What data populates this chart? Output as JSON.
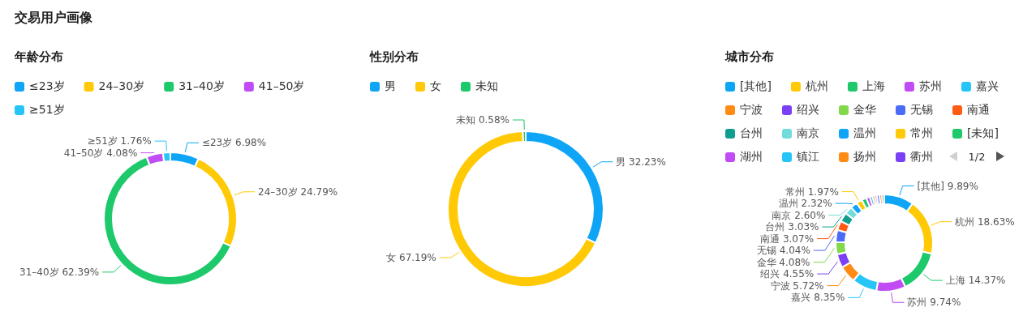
{
  "chart_data": [
    {
      "type": "other",
      "title": "交易用户画像"
    },
    {
      "type": "donut",
      "title": "年龄分布",
      "legend": "top left",
      "categories": [
        "≤23岁",
        "24–30岁",
        "31–40岁",
        "41–50岁",
        "≥51岁"
      ],
      "values": [
        6.98,
        24.79,
        62.39,
        4.08,
        1.76
      ],
      "value_labels": [
        "6.98%",
        "24.79%",
        "62.39%",
        "4.08%",
        "1.76%"
      ],
      "colors": [
        "#0ea5f7",
        "#ffc905",
        "#1dc96a",
        "#c14cf5",
        "#25c6f7"
      ]
    },
    {
      "type": "donut",
      "title": "性别分布",
      "legend": "top left",
      "categories": [
        "男",
        "女",
        "未知"
      ],
      "values": [
        32.23,
        67.19,
        0.58
      ],
      "value_labels": [
        "32.23%",
        "67.19%",
        "0.58%"
      ],
      "colors": [
        "#0ea5f7",
        "#ffc905",
        "#1dc96a"
      ]
    },
    {
      "type": "donut",
      "title": "城市分布",
      "legend": "top left",
      "annotations": [
        "1/2"
      ],
      "categories": [
        "[其他]",
        "杭州",
        "上海",
        "苏州",
        "嘉兴",
        "宁波",
        "绍兴",
        "金华",
        "无锡",
        "南通",
        "台州",
        "南京",
        "温州",
        "常州",
        "[未知]",
        "湖州",
        "镇江",
        "扬州",
        "衢州",
        null,
        null,
        null
      ],
      "values": [
        9.89,
        18.63,
        14.37,
        9.74,
        8.35,
        5.72,
        4.55,
        4.08,
        4.04,
        3.07,
        3.03,
        2.6,
        2.32,
        1.97,
        1.6,
        1.2,
        0.9,
        0.8,
        0.7,
        0.9,
        0.8,
        0.74
      ],
      "value_labels": [
        "9.89%",
        "18.63%",
        "14.37%",
        "9.74%",
        "8.35%",
        "5.72%",
        "4.55%",
        "4.08%",
        "4.04%",
        "3.07%",
        "3.03%",
        "2.60%",
        "2.32%",
        "1.97%",
        null,
        null,
        null,
        null,
        null,
        null,
        null,
        null
      ],
      "colors": [
        "#0ea5f7",
        "#ffc905",
        "#1dc96a",
        "#c14cf5",
        "#25c6f7",
        "#ff8a14",
        "#7b3ff5",
        "#82d94a",
        "#4b6bf7",
        "#ff5b12",
        "#0f9e8e",
        "#72dcdc",
        "#0ea5f7",
        "#ffc905",
        "#1dc96a",
        "#c14cf5",
        "#25c6f7",
        "#ff8a14",
        "#7b3ff5",
        "#4b6bf7",
        "#ff5b12",
        "#0f9e8e"
      ]
    }
  ]
}
